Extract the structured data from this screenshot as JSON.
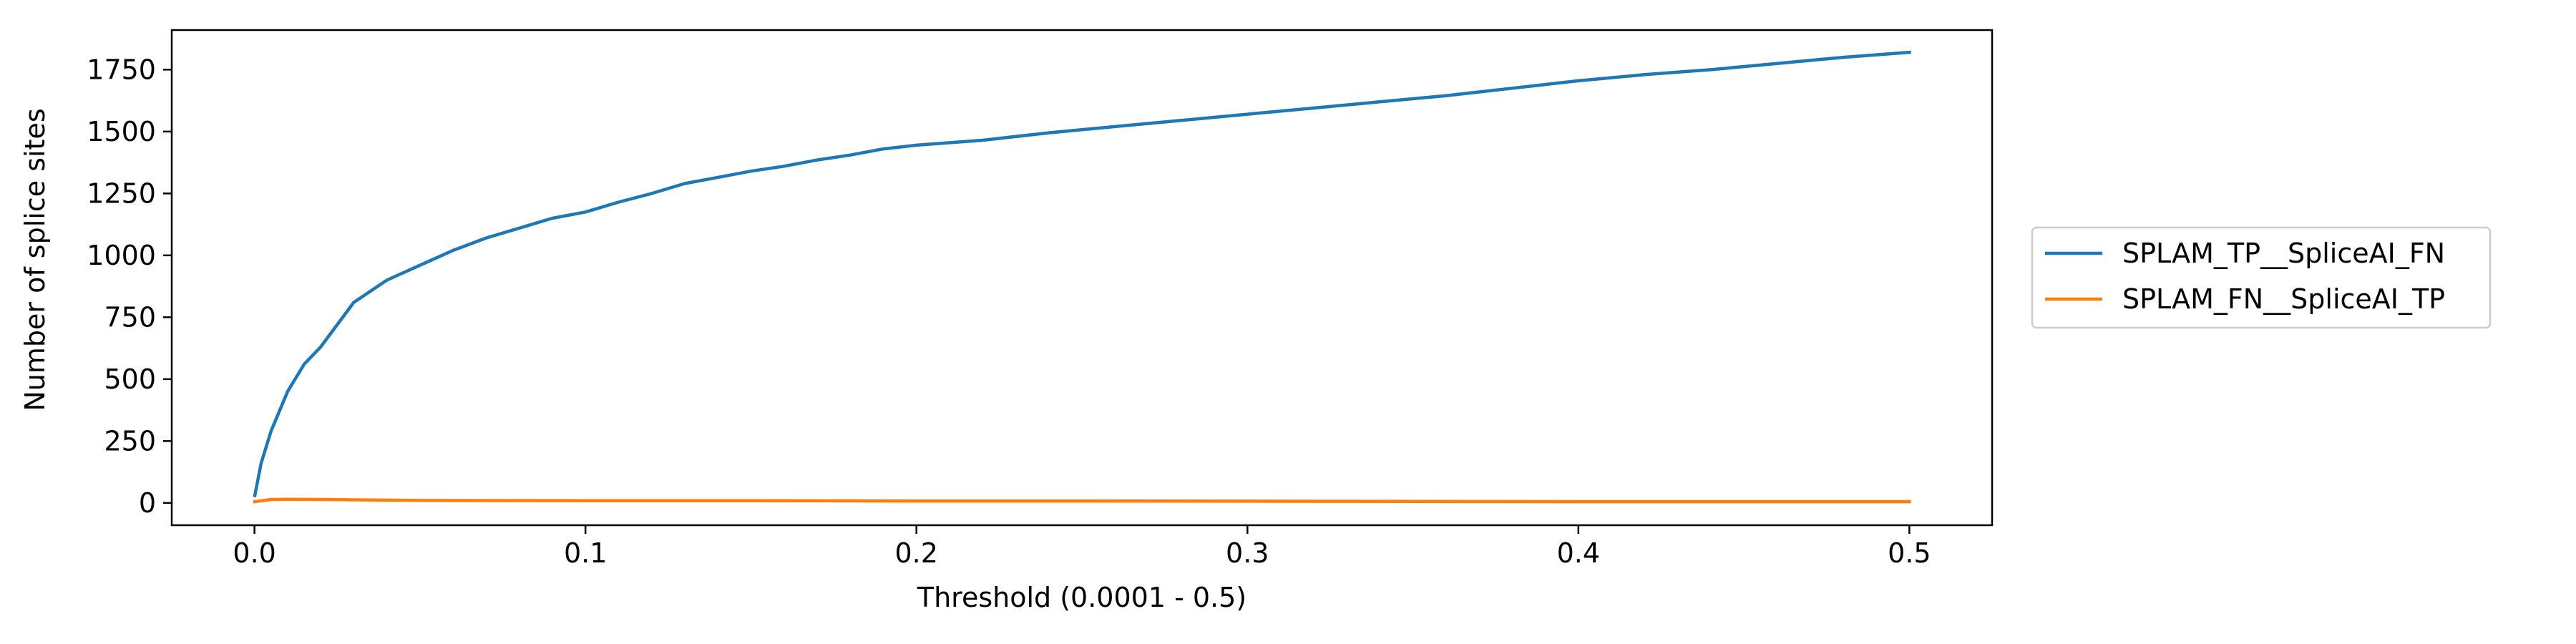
{
  "chart_data": {
    "type": "line",
    "title": "",
    "xlabel": "Threshold (0.0001 - 0.5)",
    "ylabel": "Number of splice sites",
    "xlim": [
      -0.025,
      0.525
    ],
    "ylim": [
      -90,
      1910
    ],
    "xticks": [
      0.0,
      0.1,
      0.2,
      0.3,
      0.4,
      0.5
    ],
    "xtick_labels": [
      "0.0",
      "0.1",
      "0.2",
      "0.3",
      "0.4",
      "0.5"
    ],
    "yticks": [
      0,
      250,
      500,
      750,
      1000,
      1250,
      1500,
      1750
    ],
    "ytick_labels": [
      "0",
      "250",
      "500",
      "750",
      "1000",
      "1250",
      "1500",
      "1750"
    ],
    "grid": false,
    "legend_position": "outside-right",
    "series": [
      {
        "name": "SPLAM_TP__SpliceAI_FN",
        "color": "#1f77b4",
        "x": [
          0.0001,
          0.002,
          0.005,
          0.01,
          0.015,
          0.02,
          0.03,
          0.04,
          0.05,
          0.06,
          0.07,
          0.08,
          0.09,
          0.1,
          0.11,
          0.12,
          0.13,
          0.14,
          0.15,
          0.16,
          0.17,
          0.18,
          0.19,
          0.2,
          0.22,
          0.24,
          0.26,
          0.28,
          0.3,
          0.32,
          0.34,
          0.36,
          0.38,
          0.4,
          0.42,
          0.44,
          0.46,
          0.48,
          0.5
        ],
        "y": [
          30,
          160,
          290,
          450,
          560,
          630,
          810,
          900,
          960,
          1020,
          1070,
          1110,
          1150,
          1175,
          1215,
          1250,
          1290,
          1315,
          1340,
          1360,
          1385,
          1405,
          1430,
          1445,
          1465,
          1495,
          1520,
          1545,
          1570,
          1595,
          1620,
          1645,
          1675,
          1705,
          1730,
          1750,
          1775,
          1800,
          1820
        ]
      },
      {
        "name": "SPLAM_FN__SpliceAI_TP",
        "color": "#ff7f0e",
        "x": [
          0.0001,
          0.005,
          0.01,
          0.02,
          0.05,
          0.1,
          0.15,
          0.2,
          0.25,
          0.3,
          0.35,
          0.4,
          0.45,
          0.5
        ],
        "y": [
          5,
          14,
          15,
          14,
          10,
          9,
          9,
          8,
          8,
          7,
          6,
          5,
          5,
          5
        ]
      }
    ]
  }
}
